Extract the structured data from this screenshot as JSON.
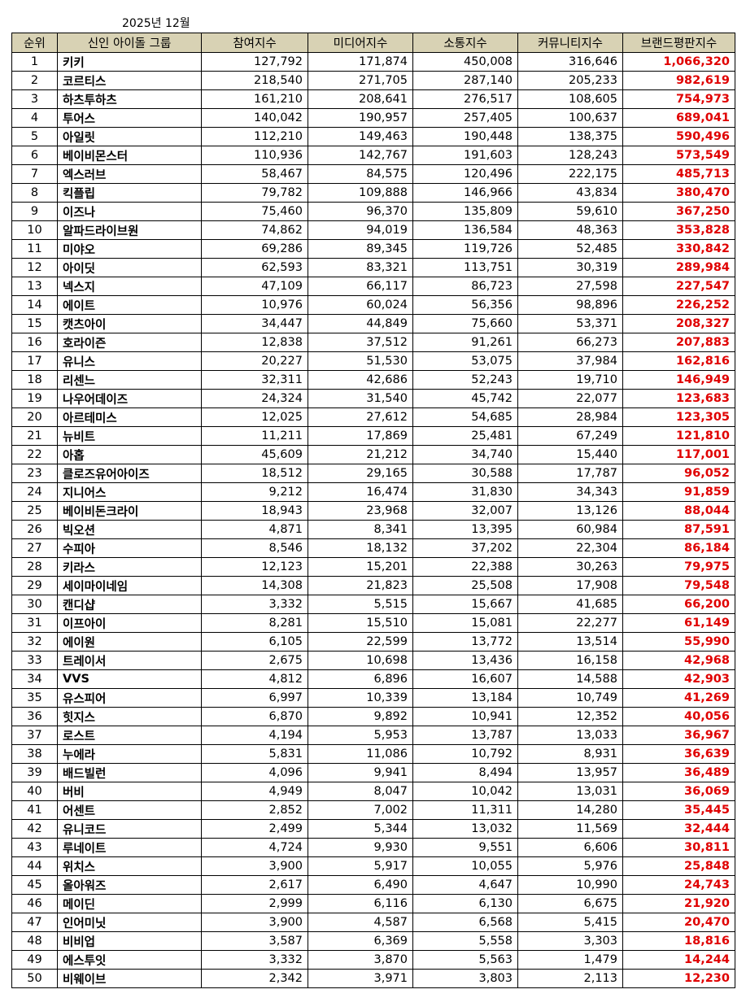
{
  "title": "2025년 12월",
  "table": {
    "header": [
      "순위",
      "신인 아이돌 그룹",
      "참여지수",
      "미디어지수",
      "소통지수",
      "커뮤니티지수",
      "브랜드평판지수"
    ],
    "rows": [
      [
        "1",
        "키키",
        "127,792",
        "171,874",
        "450,008",
        "316,646",
        "1,066,320"
      ],
      [
        "2",
        "코르티스",
        "218,540",
        "271,705",
        "287,140",
        "205,233",
        "982,619"
      ],
      [
        "3",
        "하츠투하츠",
        "161,210",
        "208,641",
        "276,517",
        "108,605",
        "754,973"
      ],
      [
        "4",
        "투어스",
        "140,042",
        "190,957",
        "257,405",
        "100,637",
        "689,041"
      ],
      [
        "5",
        "아일릿",
        "112,210",
        "149,463",
        "190,448",
        "138,375",
        "590,496"
      ],
      [
        "6",
        "베이비몬스터",
        "110,936",
        "142,767",
        "191,603",
        "128,243",
        "573,549"
      ],
      [
        "7",
        "엑스러브",
        "58,467",
        "84,575",
        "120,496",
        "222,175",
        "485,713"
      ],
      [
        "8",
        "킥플립",
        "79,782",
        "109,888",
        "146,966",
        "43,834",
        "380,470"
      ],
      [
        "9",
        "이즈나",
        "75,460",
        "96,370",
        "135,809",
        "59,610",
        "367,250"
      ],
      [
        "10",
        "알파드라이브원",
        "74,862",
        "94,019",
        "136,584",
        "48,363",
        "353,828"
      ],
      [
        "11",
        "미야오",
        "69,286",
        "89,345",
        "119,726",
        "52,485",
        "330,842"
      ],
      [
        "12",
        "아이딧",
        "62,593",
        "83,321",
        "113,751",
        "30,319",
        "289,984"
      ],
      [
        "13",
        "넥스지",
        "47,109",
        "66,117",
        "86,723",
        "27,598",
        "227,547"
      ],
      [
        "14",
        "에이트",
        "10,976",
        "60,024",
        "56,356",
        "98,896",
        "226,252"
      ],
      [
        "15",
        "캣츠아이",
        "34,447",
        "44,849",
        "75,660",
        "53,371",
        "208,327"
      ],
      [
        "16",
        "호라이즌",
        "12,838",
        "37,512",
        "91,261",
        "66,273",
        "207,883"
      ],
      [
        "17",
        "유니스",
        "20,227",
        "51,530",
        "53,075",
        "37,984",
        "162,816"
      ],
      [
        "18",
        "리센느",
        "32,311",
        "42,686",
        "52,243",
        "19,710",
        "146,949"
      ],
      [
        "19",
        "나우어데이즈",
        "24,324",
        "31,540",
        "45,742",
        "22,077",
        "123,683"
      ],
      [
        "20",
        "아르테미스",
        "12,025",
        "27,612",
        "54,685",
        "28,984",
        "123,305"
      ],
      [
        "21",
        "뉴비트",
        "11,211",
        "17,869",
        "25,481",
        "67,249",
        "121,810"
      ],
      [
        "22",
        "아홉",
        "45,609",
        "21,212",
        "34,740",
        "15,440",
        "117,001"
      ],
      [
        "23",
        "클로즈유어아이즈",
        "18,512",
        "29,165",
        "30,588",
        "17,787",
        "96,052"
      ],
      [
        "24",
        "지니어스",
        "9,212",
        "16,474",
        "31,830",
        "34,343",
        "91,859"
      ],
      [
        "25",
        "베이비돈크라이",
        "18,943",
        "23,968",
        "32,007",
        "13,126",
        "88,044"
      ],
      [
        "26",
        "빅오션",
        "4,871",
        "8,341",
        "13,395",
        "60,984",
        "87,591"
      ],
      [
        "27",
        "수피아",
        "8,546",
        "18,132",
        "37,202",
        "22,304",
        "86,184"
      ],
      [
        "28",
        "키라스",
        "12,123",
        "15,201",
        "22,388",
        "30,263",
        "79,975"
      ],
      [
        "29",
        "세이마이네임",
        "14,308",
        "21,823",
        "25,508",
        "17,908",
        "79,548"
      ],
      [
        "30",
        "캔디샵",
        "3,332",
        "5,515",
        "15,667",
        "41,685",
        "66,200"
      ],
      [
        "31",
        "이프아이",
        "8,281",
        "15,510",
        "15,081",
        "22,277",
        "61,149"
      ],
      [
        "32",
        "에이원",
        "6,105",
        "22,599",
        "13,772",
        "13,514",
        "55,990"
      ],
      [
        "33",
        "트레이서",
        "2,675",
        "10,698",
        "13,436",
        "16,158",
        "42,968"
      ],
      [
        "34",
        "VVS",
        "4,812",
        "6,896",
        "16,607",
        "14,588",
        "42,903"
      ],
      [
        "35",
        "유스피어",
        "6,997",
        "10,339",
        "13,184",
        "10,749",
        "41,269"
      ],
      [
        "36",
        "힛지스",
        "6,870",
        "9,892",
        "10,941",
        "12,352",
        "40,056"
      ],
      [
        "37",
        "로스트",
        "4,194",
        "5,953",
        "13,787",
        "13,033",
        "36,967"
      ],
      [
        "38",
        "누에라",
        "5,831",
        "11,086",
        "10,792",
        "8,931",
        "36,639"
      ],
      [
        "39",
        "배드빌런",
        "4,096",
        "9,941",
        "8,494",
        "13,957",
        "36,489"
      ],
      [
        "40",
        "버비",
        "4,949",
        "8,047",
        "10,042",
        "13,031",
        "36,069"
      ],
      [
        "41",
        "어센트",
        "2,852",
        "7,002",
        "11,311",
        "14,280",
        "35,445"
      ],
      [
        "42",
        "유니코드",
        "2,499",
        "5,344",
        "13,032",
        "11,569",
        "32,444"
      ],
      [
        "43",
        "루네이트",
        "4,724",
        "9,930",
        "9,551",
        "6,606",
        "30,811"
      ],
      [
        "44",
        "위치스",
        "3,900",
        "5,917",
        "10,055",
        "5,976",
        "25,848"
      ],
      [
        "45",
        "올아워즈",
        "2,617",
        "6,490",
        "4,647",
        "10,990",
        "24,743"
      ],
      [
        "46",
        "메이딘",
        "2,999",
        "6,116",
        "6,130",
        "6,675",
        "21,920"
      ],
      [
        "47",
        "인어미닛",
        "3,900",
        "4,587",
        "6,568",
        "5,415",
        "20,470"
      ],
      [
        "48",
        "비비업",
        "3,587",
        "6,369",
        "5,558",
        "3,303",
        "18,816"
      ],
      [
        "49",
        "에스투잇",
        "3,332",
        "3,870",
        "5,563",
        "1,479",
        "14,244"
      ],
      [
        "50",
        "비웨이브",
        "2,342",
        "3,971",
        "3,803",
        "2,113",
        "12,230"
      ]
    ]
  }
}
